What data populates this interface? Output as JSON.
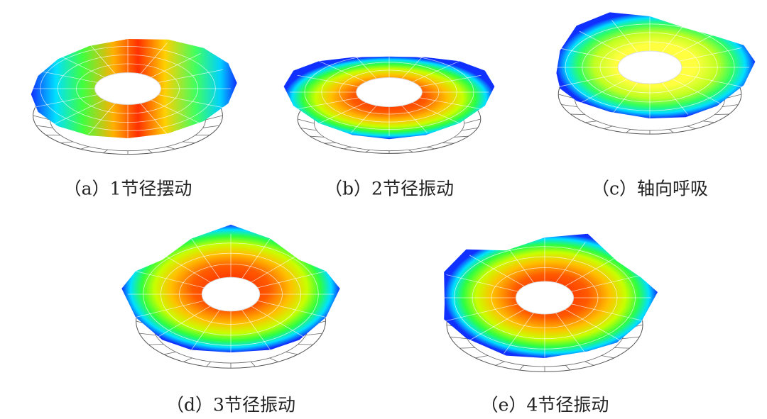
{
  "panels": [
    {
      "caption": "（a）1节径摆动"
    },
    {
      "caption": "（b）2节径振动"
    },
    {
      "caption": "（c）轴向呼吸"
    },
    {
      "caption": "（d）3节径振动"
    },
    {
      "caption": "（e）4节径振动"
    }
  ]
}
